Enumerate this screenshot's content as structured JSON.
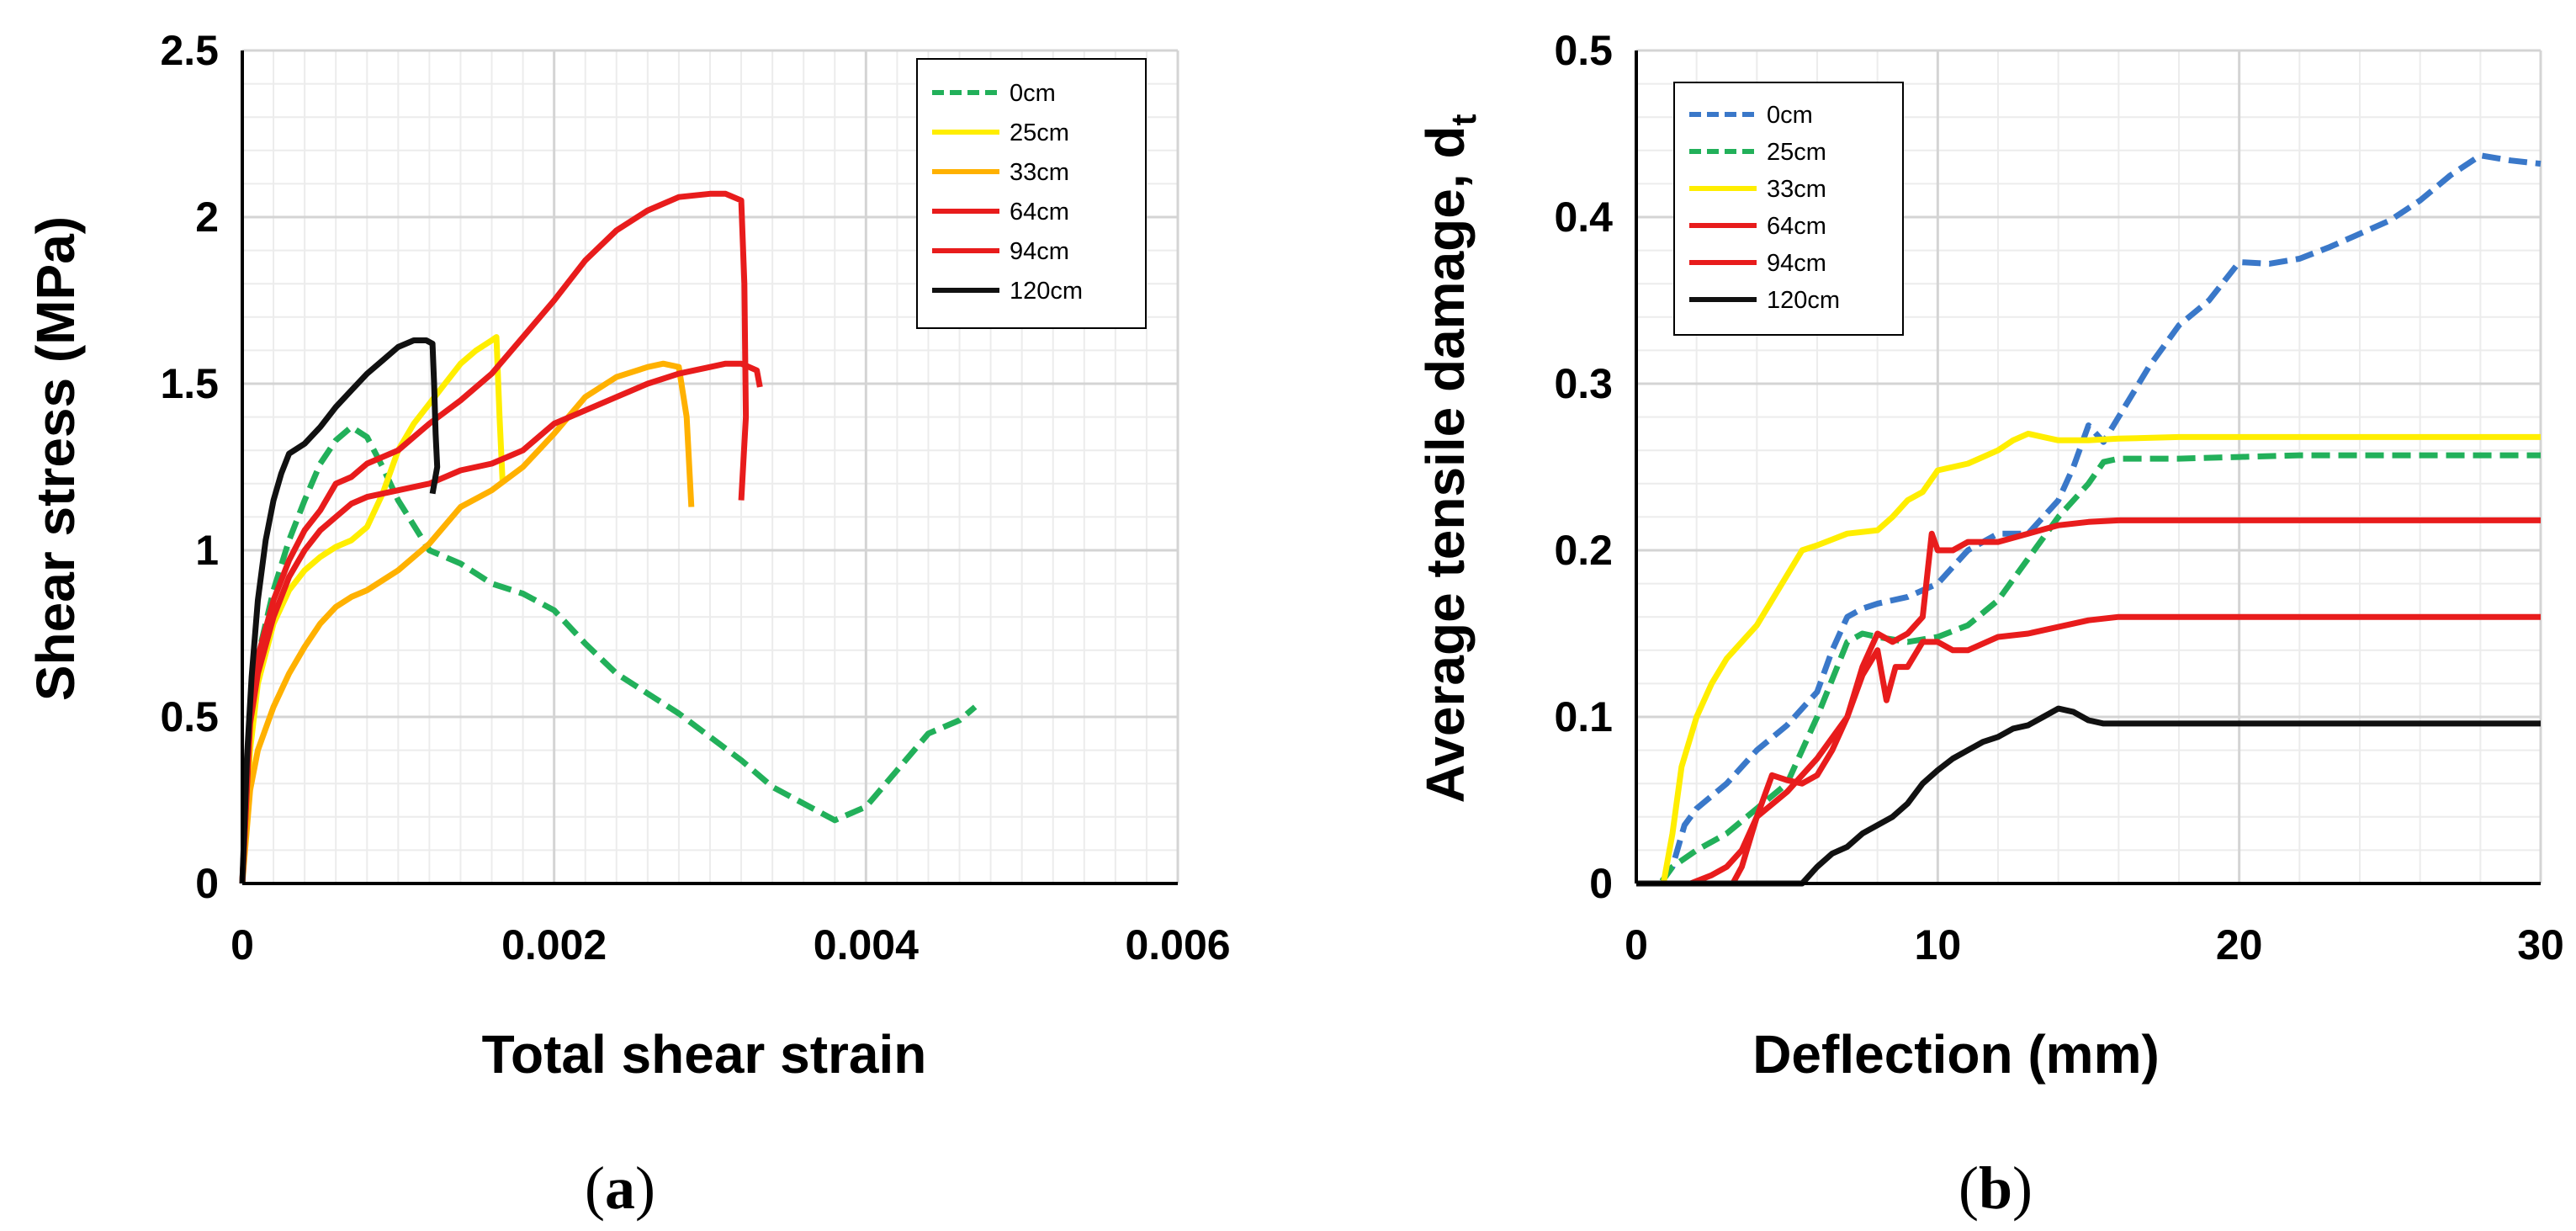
{
  "chart_data": [
    {
      "type": "line",
      "panel_label": "a",
      "xlabel": "Total shear strain",
      "ylabel": "Shear stress (MPa)",
      "xlim": [
        0,
        0.006
      ],
      "ylim": [
        0,
        2.5
      ],
      "x_ticks": [
        0,
        0.002,
        0.004,
        0.006
      ],
      "x_tick_labels": [
        "0",
        "0.002",
        "0.004",
        "0.006"
      ],
      "y_ticks": [
        0,
        0.5,
        1,
        1.5,
        2,
        2.5
      ],
      "y_tick_labels": [
        "0",
        "0.5",
        "1",
        "1.5",
        "2",
        "2.5"
      ],
      "grid": true,
      "legend_position": "top-right",
      "series": [
        {
          "name": "0cm",
          "color": "#22b05a",
          "dash": "dashed",
          "x": [
            0,
            5e-05,
            0.0001,
            0.0002,
            0.0003,
            0.0004,
            0.0005,
            0.0006,
            0.0007,
            0.0008,
            0.0009,
            0.001,
            0.0012,
            0.0014,
            0.0016,
            0.0018,
            0.002,
            0.0022,
            0.0024,
            0.0026,
            0.0028,
            0.003,
            0.0032,
            0.0034,
            0.0036,
            0.0038,
            0.004,
            0.0042,
            0.0044,
            0.0046,
            0.0047
          ],
          "y": [
            0,
            0.45,
            0.68,
            0.88,
            1.03,
            1.15,
            1.26,
            1.33,
            1.37,
            1.34,
            1.25,
            1.15,
            1.0,
            0.96,
            0.9,
            0.87,
            0.82,
            0.72,
            0.63,
            0.57,
            0.51,
            0.44,
            0.37,
            0.29,
            0.24,
            0.19,
            0.23,
            0.34,
            0.45,
            0.49,
            0.53
          ]
        },
        {
          "name": "25cm",
          "color": "#ffee00",
          "dash": "solid",
          "x": [
            0,
            5e-05,
            0.0001,
            0.0002,
            0.0003,
            0.0004,
            0.0005,
            0.0006,
            0.0007,
            0.0008,
            0.0009,
            0.001,
            0.0011,
            0.0012,
            0.0013,
            0.0014,
            0.0015,
            0.0016,
            0.00163,
            0.00165,
            0.00167
          ],
          "y": [
            0,
            0.4,
            0.6,
            0.78,
            0.88,
            0.94,
            0.98,
            1.01,
            1.03,
            1.07,
            1.17,
            1.3,
            1.38,
            1.44,
            1.5,
            1.56,
            1.6,
            1.63,
            1.64,
            1.4,
            1.2
          ]
        },
        {
          "name": "33cm",
          "color": "#ffb100",
          "dash": "solid",
          "x": [
            0,
            5e-05,
            0.0001,
            0.0002,
            0.0003,
            0.0004,
            0.0005,
            0.0006,
            0.0007,
            0.0008,
            0.001,
            0.0012,
            0.0014,
            0.0016,
            0.0018,
            0.002,
            0.0022,
            0.0024,
            0.0026,
            0.0027,
            0.0028,
            0.00285,
            0.00288
          ],
          "y": [
            0,
            0.28,
            0.4,
            0.53,
            0.63,
            0.71,
            0.78,
            0.83,
            0.86,
            0.88,
            0.94,
            1.02,
            1.13,
            1.18,
            1.25,
            1.35,
            1.46,
            1.52,
            1.55,
            1.56,
            1.55,
            1.4,
            1.13
          ]
        },
        {
          "name": "64cm",
          "color": "#e81c1c",
          "dash": "solid",
          "x": [
            0,
            5e-05,
            0.0001,
            0.0002,
            0.0003,
            0.0004,
            0.0005,
            0.0006,
            0.0007,
            0.0008,
            0.001,
            0.0012,
            0.0014,
            0.0016,
            0.0018,
            0.002,
            0.0022,
            0.0024,
            0.0026,
            0.0028,
            0.003,
            0.0031,
            0.0032,
            0.00322,
            0.00323,
            0.0032
          ],
          "y": [
            0,
            0.5,
            0.68,
            0.85,
            0.97,
            1.06,
            1.12,
            1.2,
            1.22,
            1.26,
            1.3,
            1.38,
            1.45,
            1.53,
            1.64,
            1.75,
            1.87,
            1.96,
            2.02,
            2.06,
            2.07,
            2.07,
            2.05,
            1.8,
            1.4,
            1.15
          ]
        },
        {
          "name": "94cm",
          "color": "#e81c1c",
          "dash": "solid",
          "x": [
            0,
            5e-05,
            0.0001,
            0.0002,
            0.0003,
            0.0004,
            0.0005,
            0.0006,
            0.0007,
            0.0008,
            0.001,
            0.0012,
            0.0014,
            0.0016,
            0.0018,
            0.002,
            0.0022,
            0.0024,
            0.0026,
            0.0028,
            0.003,
            0.0031,
            0.0032,
            0.0033,
            0.00332
          ],
          "y": [
            0,
            0.48,
            0.63,
            0.8,
            0.92,
            1.0,
            1.06,
            1.1,
            1.14,
            1.16,
            1.18,
            1.2,
            1.24,
            1.26,
            1.3,
            1.38,
            1.42,
            1.46,
            1.5,
            1.53,
            1.55,
            1.56,
            1.56,
            1.54,
            1.49
          ]
        },
        {
          "name": "120cm",
          "color": "#111111",
          "dash": "solid",
          "x": [
            0,
            3e-05,
            6e-05,
            0.0001,
            0.00015,
            0.0002,
            0.00025,
            0.0003,
            0.0004,
            0.0005,
            0.0006,
            0.0007,
            0.0008,
            0.0009,
            0.001,
            0.0011,
            0.00118,
            0.00122,
            0.00123,
            0.00124,
            0.00125,
            0.00122
          ],
          "y": [
            0,
            0.38,
            0.62,
            0.85,
            1.03,
            1.15,
            1.23,
            1.29,
            1.32,
            1.37,
            1.43,
            1.48,
            1.53,
            1.57,
            1.61,
            1.63,
            1.63,
            1.62,
            1.5,
            1.35,
            1.25,
            1.17
          ]
        }
      ]
    },
    {
      "type": "line",
      "panel_label": "b",
      "xlabel": "Deflection (mm)",
      "ylabel": "Average tensile damage, d",
      "ylabel_subscript": "t",
      "xlim": [
        0,
        30
      ],
      "ylim": [
        0,
        0.5
      ],
      "x_ticks": [
        0,
        10,
        20,
        30
      ],
      "x_tick_labels": [
        "0",
        "10",
        "20",
        "30"
      ],
      "y_ticks": [
        0,
        0.1,
        0.2,
        0.3,
        0.4,
        0.5
      ],
      "y_tick_labels": [
        "0",
        "0.1",
        "0.2",
        "0.3",
        "0.4",
        "0.5"
      ],
      "grid": true,
      "legend_position": "top-left",
      "series": [
        {
          "name": "0cm",
          "color": "#3a78c9",
          "dash": "dashed",
          "x": [
            0,
            0.8,
            1.2,
            1.6,
            2,
            3,
            4,
            5,
            6,
            6.5,
            7,
            7.5,
            8,
            9,
            10,
            11,
            12,
            13,
            14,
            14.5,
            15,
            15.5,
            16,
            17,
            18,
            19,
            20,
            21,
            22,
            23,
            24,
            25,
            26,
            27,
            28,
            29,
            30
          ],
          "y": [
            0,
            0,
            0.01,
            0.035,
            0.045,
            0.06,
            0.08,
            0.095,
            0.115,
            0.14,
            0.16,
            0.165,
            0.168,
            0.172,
            0.18,
            0.2,
            0.21,
            0.21,
            0.23,
            0.25,
            0.275,
            0.265,
            0.28,
            0.31,
            0.335,
            0.35,
            0.373,
            0.372,
            0.375,
            0.382,
            0.39,
            0.398,
            0.41,
            0.425,
            0.437,
            0.434,
            0.432
          ]
        },
        {
          "name": "25cm",
          "color": "#22b05a",
          "dash": "dashed",
          "x": [
            0,
            0.8,
            1.2,
            2,
            3,
            4,
            5,
            6,
            7,
            7.5,
            8,
            9,
            10,
            11,
            12,
            13,
            14,
            15,
            15.5,
            16,
            18,
            20,
            22,
            24,
            26,
            28,
            30
          ],
          "y": [
            0,
            0,
            0.01,
            0.02,
            0.03,
            0.045,
            0.06,
            0.1,
            0.145,
            0.15,
            0.148,
            0.145,
            0.148,
            0.155,
            0.17,
            0.195,
            0.22,
            0.24,
            0.253,
            0.255,
            0.255,
            0.256,
            0.257,
            0.257,
            0.257,
            0.257,
            0.257
          ]
        },
        {
          "name": "33cm",
          "color": "#ffee00",
          "dash": "solid",
          "x": [
            0,
            0.9,
            1.2,
            1.5,
            2,
            2.5,
            3,
            4,
            5,
            5.5,
            6,
            7,
            8,
            8.5,
            9,
            9.5,
            10,
            11,
            12,
            12.5,
            13,
            13.5,
            14,
            15,
            16,
            18,
            20,
            25,
            30
          ],
          "y": [
            0,
            0,
            0.03,
            0.07,
            0.1,
            0.12,
            0.135,
            0.155,
            0.185,
            0.2,
            0.203,
            0.21,
            0.212,
            0.22,
            0.23,
            0.235,
            0.248,
            0.252,
            0.26,
            0.266,
            0.27,
            0.268,
            0.266,
            0.266,
            0.267,
            0.268,
            0.268,
            0.268,
            0.268
          ]
        },
        {
          "name": "64cm",
          "color": "#e81c1c",
          "dash": "solid",
          "x": [
            0,
            3.2,
            3.5,
            4,
            4.5,
            5,
            5.5,
            6,
            6.5,
            7,
            7.5,
            8,
            8.5,
            9,
            9.5,
            9.8,
            10,
            10.5,
            11,
            12,
            13,
            14,
            15,
            16,
            17,
            20,
            25,
            30
          ],
          "y": [
            0,
            0,
            0.01,
            0.04,
            0.065,
            0.062,
            0.06,
            0.065,
            0.08,
            0.1,
            0.13,
            0.15,
            0.145,
            0.15,
            0.16,
            0.21,
            0.2,
            0.2,
            0.205,
            0.205,
            0.21,
            0.215,
            0.217,
            0.218,
            0.218,
            0.218,
            0.218,
            0.218
          ]
        },
        {
          "name": "94cm",
          "color": "#e81c1c",
          "dash": "solid",
          "x": [
            0,
            1.8,
            2.5,
            3,
            3.5,
            4,
            5,
            6,
            7,
            7.5,
            8,
            8.3,
            8.6,
            9,
            9.5,
            10,
            10.5,
            11,
            12,
            13,
            14,
            15,
            16,
            17,
            20,
            25,
            30
          ],
          "y": [
            0,
            0,
            0.005,
            0.01,
            0.02,
            0.04,
            0.055,
            0.075,
            0.1,
            0.125,
            0.14,
            0.11,
            0.13,
            0.13,
            0.145,
            0.145,
            0.14,
            0.14,
            0.148,
            0.15,
            0.154,
            0.158,
            0.16,
            0.16,
            0.16,
            0.16,
            0.16
          ]
        },
        {
          "name": "120cm",
          "color": "#111111",
          "dash": "solid",
          "x": [
            0,
            5.5,
            6,
            6.5,
            7,
            7.5,
            8,
            8.5,
            9,
            9.5,
            10,
            10.5,
            11,
            11.5,
            12,
            12.5,
            13,
            13.5,
            14,
            14.5,
            15,
            15.5,
            16,
            18,
            20,
            25,
            30
          ],
          "y": [
            0,
            0,
            0.01,
            0.018,
            0.022,
            0.03,
            0.035,
            0.04,
            0.048,
            0.06,
            0.068,
            0.075,
            0.08,
            0.085,
            0.088,
            0.093,
            0.095,
            0.1,
            0.105,
            0.103,
            0.098,
            0.096,
            0.096,
            0.096,
            0.096,
            0.096,
            0.096
          ]
        }
      ]
    }
  ]
}
